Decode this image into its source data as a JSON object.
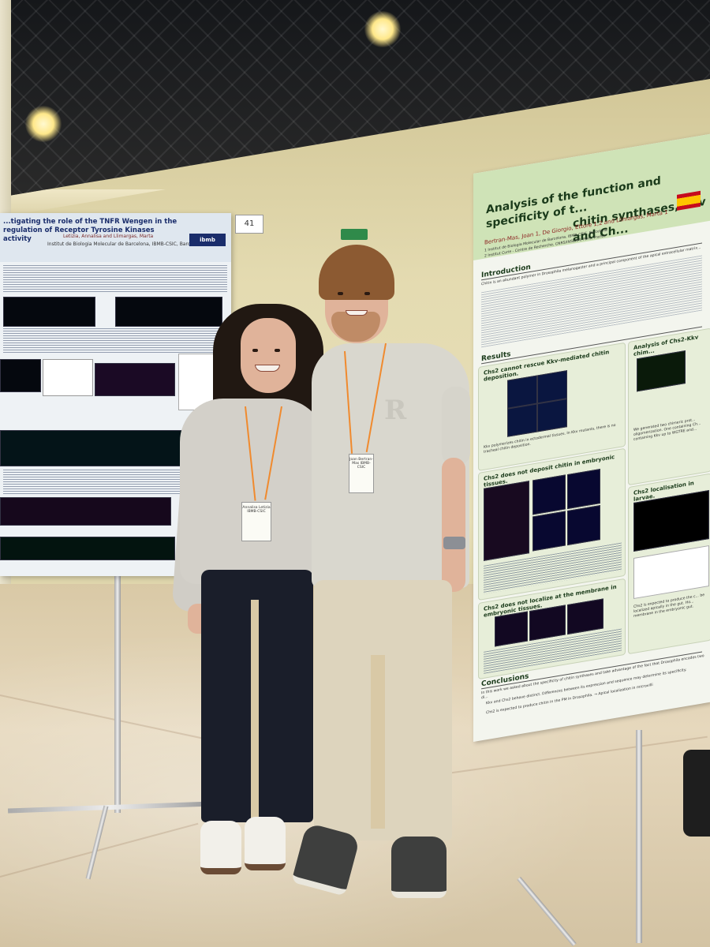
{
  "left_poster": {
    "title": "...tigating the role of the TNFR Wengen in the regulation of Receptor Tyrosine Kinases activity",
    "authors": "Letizia, Annalisa and Llimargas, Marta",
    "institute": "Institut de Biologia Molecular de Barcelona, IBMB-CSIC, Barcelona",
    "logo": "ibmb",
    "board_number": "41"
  },
  "right_poster": {
    "title_line1": "Analysis of the function and specificity of t...",
    "title_line2": "chitin synthases, Kkv and Ch...",
    "authors": "Bertran-Mas, Joan 1, De Giorgio, Ettore 1,2 and Llimargas, Marta 1",
    "affil1": "1 Institut de Biologia Molecular de Barcelona, IBMB-CSIC, Barcelona",
    "affil2": "2 Institut Curie - Centre de Recherche, CNRS/INSERM, Paris, France",
    "sections": {
      "intro": "Introduction",
      "results": "Results",
      "conclusions": "Conclusions"
    },
    "boxes": [
      "Chs2 cannot rescue Kkv-mediated chitin deposition.",
      "Chs2 does not deposit chitin in embryonic tissues.",
      "Chs2 does not localize at the membrane in embryonic tissues.",
      "Analysis of Chs2-Kkv chim...",
      "Chs2 localisation in larvae."
    ],
    "snippets": {
      "intro": "Chitin is an abundant polymer in Drosophila melanogaster and a principal component of the apical extracellular matrix...",
      "results1": "Kkv polymerizes chitin in ectodermal tissues. In Kkv mutants, there is no tracheal chitin deposition.",
      "results2": "We generated two chimeric prot... oligomerization. One containing Ch... containing Kkv up to WGTRE and...",
      "results3": "Chs2 is expected to produce the c... be localized apically in the gut. Ho... membrane in the embryonic gut.",
      "conclusion": "In this work we asked about the specificity of chitin synthases and take advantage of the fact that Drosophila encodes two di...",
      "bullet1": "Kkv and Chs2 behave distinct. Differences between its expression and sequence may determine its specificity.",
      "bullet2": "Chs2 is expected to produce chitin in the PM in Drosophila. → Apical localization in microvilli"
    },
    "flag": "es-flag"
  },
  "people": {
    "woman_badge": "Annalisa Letizia IBMB-CSIC",
    "man_badge": "Joan Bertran-Mas IBMB-CSIC",
    "shirt_letter": "R"
  }
}
